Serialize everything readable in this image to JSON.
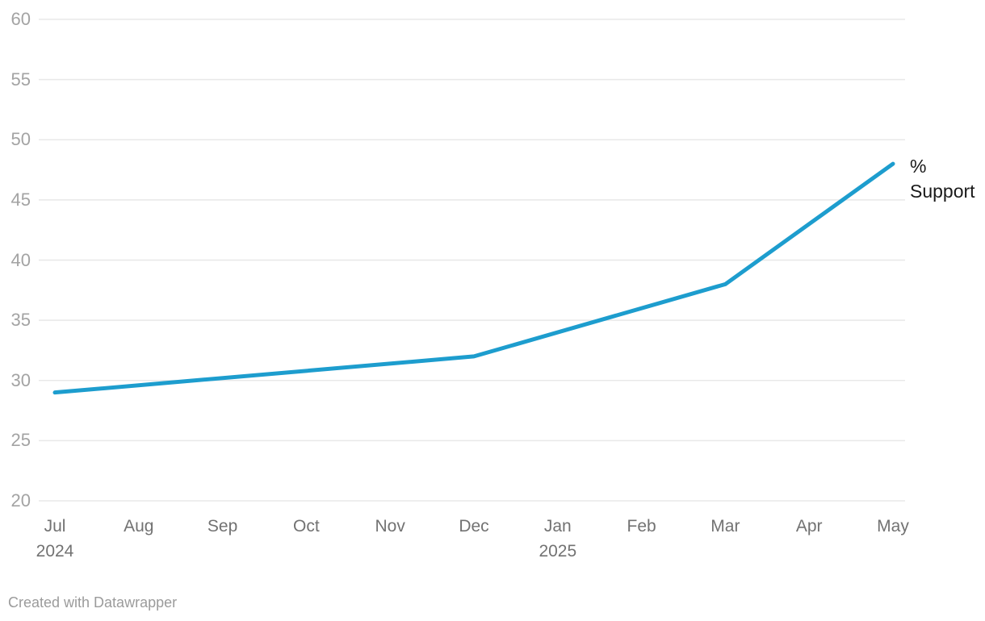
{
  "chart_data": {
    "type": "line",
    "title": "",
    "xlabel": "",
    "ylabel": "",
    "ylim": [
      20,
      60
    ],
    "y_ticks": [
      20,
      25,
      30,
      35,
      40,
      45,
      50,
      55,
      60
    ],
    "grid": "horizontal-only",
    "legend_position": "line-end-label",
    "x_ticks": [
      {
        "label": "Jul",
        "sublabel": "2024"
      },
      {
        "label": "Aug",
        "sublabel": ""
      },
      {
        "label": "Sep",
        "sublabel": ""
      },
      {
        "label": "Oct",
        "sublabel": ""
      },
      {
        "label": "Nov",
        "sublabel": ""
      },
      {
        "label": "Dec",
        "sublabel": ""
      },
      {
        "label": "Jan",
        "sublabel": "2025"
      },
      {
        "label": "Feb",
        "sublabel": ""
      },
      {
        "label": "Mar",
        "sublabel": ""
      },
      {
        "label": "Apr",
        "sublabel": ""
      },
      {
        "label": "May",
        "sublabel": ""
      }
    ],
    "series": [
      {
        "name": "% Support",
        "color": "#1d9dce",
        "points": [
          {
            "x": "Jul 2024",
            "month_index": 0,
            "value": 29
          },
          {
            "x": "Dec 2024",
            "month_index": 5,
            "value": 32
          },
          {
            "x": "Mar 2025",
            "month_index": 8,
            "value": 38
          },
          {
            "x": "May 2025",
            "month_index": 10,
            "value": 48
          }
        ]
      }
    ]
  },
  "labels": {
    "series_end_label_line1": "%",
    "series_end_label_line2": "Support"
  },
  "footer": {
    "credit": "Created with Datawrapper"
  },
  "colors": {
    "line": "#1d9dce",
    "grid": "#e8e8e8",
    "y_tick_text": "#a3a3a3",
    "x_tick_text": "#727272",
    "series_label_text": "#1a1a1a",
    "credit_text": "#9b9b9b",
    "background": "#ffffff"
  }
}
